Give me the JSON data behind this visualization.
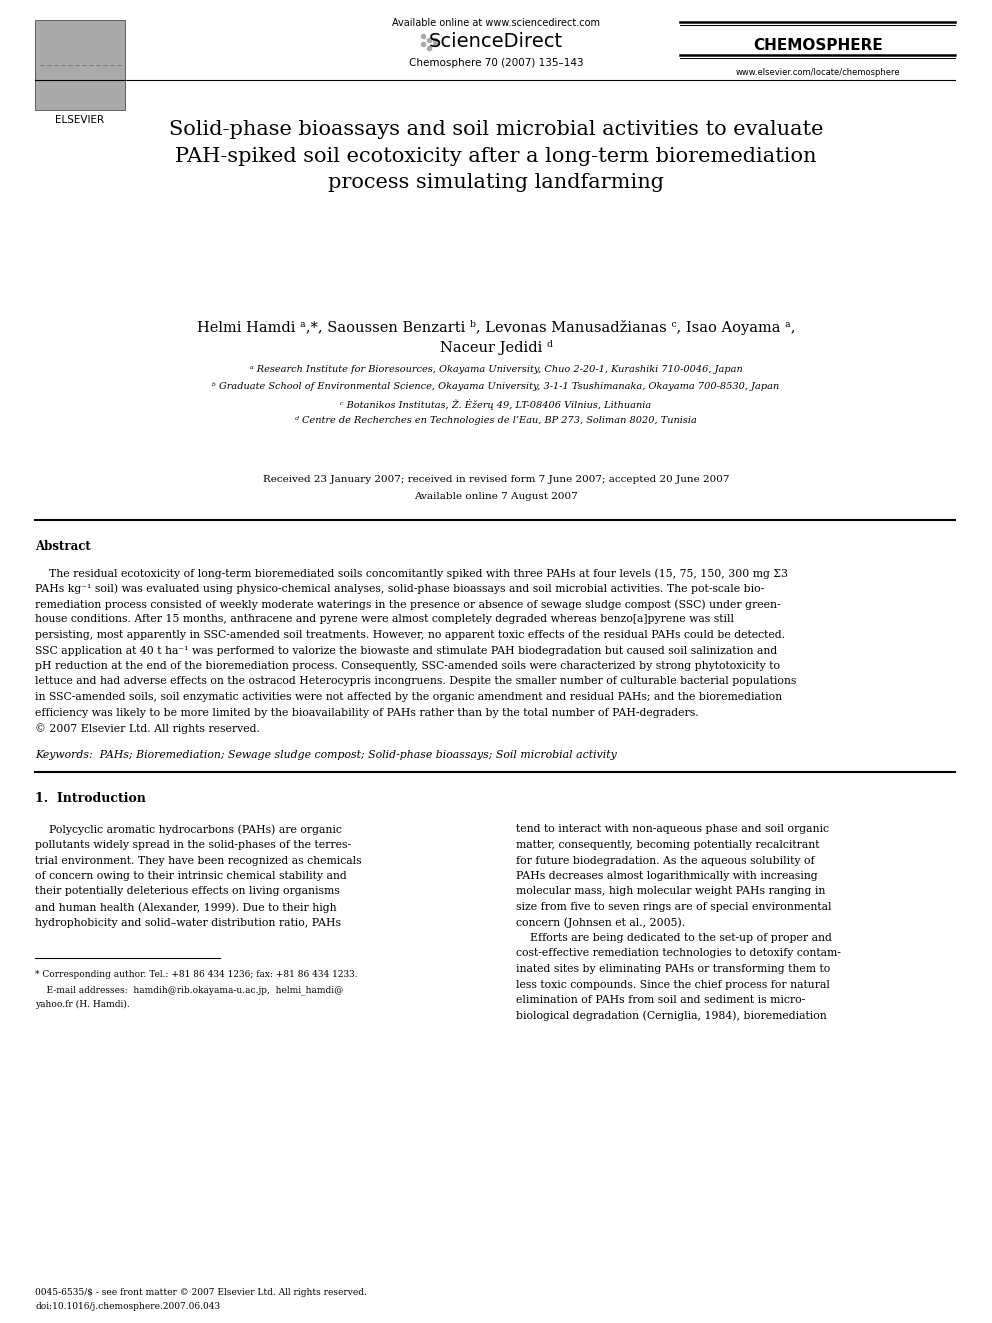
{
  "background_color": "#ffffff",
  "page_width": 9.92,
  "page_height": 13.23,
  "header": {
    "available_online": "Available online at www.sciencedirect.com",
    "journal_name": "CHEMOSPHERE",
    "journal_info": "Chemosphere 70 (2007) 135–143",
    "journal_url": "www.elsevier.com/locate/chemosphere",
    "elsevier": "ELSEVIER"
  },
  "title": "Solid-phase bioassays and soil microbial activities to evaluate\nPAH-spiked soil ecotoxicity after a long-term bioremediation\nprocess simulating landfarming",
  "authors_line1": "Helmi Hamdi ᵃ,*, Saoussen Benzarti ᵇ, Levonas Manusadžianas ᶜ, Isao Aoyama ᵃ,",
  "authors_line2": "Naceur Jedidi ᵈ",
  "affiliations": [
    "ᵃ Research Institute for Bioresources, Okayama University, Chuo 2-20-1, Kurashiki 710-0046, Japan",
    "ᵇ Graduate School of Environmental Science, Okayama University, 3-1-1 Tsushimanaka, Okayama 700-8530, Japan",
    "ᶜ Botanikos Institutas, Ž. Ėžerų 49, LT-08406 Vilnius, Lithuania",
    "ᵈ Centre de Recherches en Technologies de l’Eau, BP 273, Soliman 8020, Tunisia"
  ],
  "received": "Received 23 January 2007; received in revised form 7 June 2007; accepted 20 June 2007",
  "available_online_date": "Available online 7 August 2007",
  "abstract_title": "Abstract",
  "abstract_lines": [
    "    The residual ecotoxicity of long-term bioremediated soils concomitantly spiked with three PAHs at four levels (15, 75, 150, 300 mg Σ3",
    "PAHs kg⁻¹ soil) was evaluated using physico-chemical analyses, solid-phase bioassays and soil microbial activities. The pot-scale bio-",
    "remediation process consisted of weekly moderate waterings in the presence or absence of sewage sludge compost (SSC) under green-",
    "house conditions. After 15 months, anthracene and pyrene were almost completely degraded whereas benzo[a]pyrene was still",
    "persisting, most apparently in SSC-amended soil treatments. However, no apparent toxic effects of the residual PAHs could be detected.",
    "SSC application at 40 t ha⁻¹ was performed to valorize the biowaste and stimulate PAH biodegradation but caused soil salinization and",
    "pH reduction at the end of the bioremediation process. Consequently, SSC-amended soils were characterized by strong phytotoxicity to",
    "lettuce and had adverse effects on the ostracod Heterocypris incongruens. Despite the smaller number of culturable bacterial populations",
    "in SSC-amended soils, soil enzymatic activities were not affected by the organic amendment and residual PAHs; and the bioremediation",
    "efficiency was likely to be more limited by the bioavailability of PAHs rather than by the total number of PAH-degraders.",
    "© 2007 Elsevier Ltd. All rights reserved."
  ],
  "keywords": "Keywords:  PAHs; Bioremediation; Sewage sludge compost; Solid-phase bioassays; Soil microbial activity",
  "section1_title": "1.  Introduction",
  "col1_lines": [
    "    Polycyclic aromatic hydrocarbons (PAHs) are organic",
    "pollutants widely spread in the solid-phases of the terres-",
    "trial environment. They have been recognized as chemicals",
    "of concern owing to their intrinsic chemical stability and",
    "their potentially deleterious effects on living organisms",
    "and human health (Alexander, 1999). Due to their high",
    "hydrophobicity and solid–water distribution ratio, PAHs"
  ],
  "col2_lines": [
    "tend to interact with non-aqueous phase and soil organic",
    "matter, consequently, becoming potentially recalcitrant",
    "for future biodegradation. As the aqueous solubility of",
    "PAHs decreases almost logarithmically with increasing",
    "molecular mass, high molecular weight PAHs ranging in",
    "size from five to seven rings are of special environmental",
    "concern (Johnsen et al., 2005).",
    "    Efforts are being dedicated to the set-up of proper and",
    "cost-effective remediation technologies to detoxify contam-",
    "inated sites by eliminating PAHs or transforming them to",
    "less toxic compounds. Since the chief process for natural",
    "elimination of PAHs from soil and sediment is micro-",
    "biological degradation (Cerniglia, 1984), bioremediation"
  ],
  "footnote_star": "* Corresponding author. Tel.: +81 86 434 1236; fax: +81 86 434 1233.",
  "footnote_email_label": "    E-mail addresses:  hamdih@rib.okayama-u.ac.jp,  helmi_hamdi@",
  "footnote_email2": "yahoo.fr (H. Hamdi).",
  "footer1": "0045-6535/$ - see front matter © 2007 Elsevier Ltd. All rights reserved.",
  "footer2": "doi:10.1016/j.chemosphere.2007.06.043"
}
